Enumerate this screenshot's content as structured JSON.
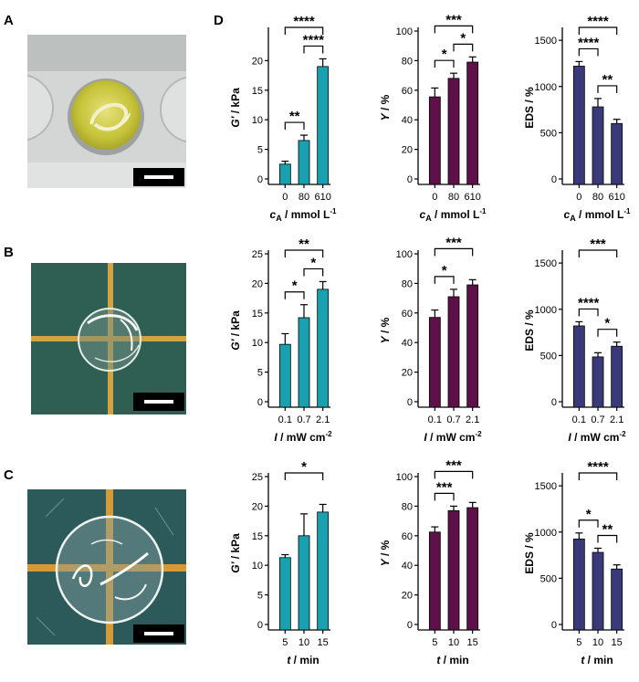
{
  "panel_labels": {
    "a": "A",
    "b": "B",
    "c": "C",
    "d": "D"
  },
  "photos": {
    "a": {
      "description_icon": "hydrogel-photo-yellow",
      "colors": {
        "bg": "#c9cccb",
        "gel": "#c8c83a"
      }
    },
    "b": {
      "description_icon": "hydrogel-photo-grid",
      "colors": {
        "bg": "#2e5e52",
        "grid": "#d2a23e"
      }
    },
    "c": {
      "description_icon": "hydrogel-photo-grid",
      "colors": {
        "bg": "#2b5a5a",
        "grid": "#d69a35"
      }
    }
  },
  "colors": {
    "gprime": "#1aa1b0",
    "y": "#5e1048",
    "eds": "#3a3a7a"
  },
  "chart_data": [
    {
      "type": "bar",
      "id": "r1c1",
      "ylabel": "G' / kPa",
      "xlabel": "cA / mmol L-1",
      "xlabel_main": "c",
      "xlabel_sub": "A",
      "xlabel_unit": " / mmol L",
      "xlabel_sup": "-1",
      "categories": [
        "0",
        "80",
        "610"
      ],
      "values": [
        2.5,
        6.5,
        19
      ],
      "errors": [
        0.5,
        0.9,
        1.3
      ],
      "ylim": [
        0,
        25
      ],
      "yticks": [
        0,
        5,
        10,
        15,
        20
      ],
      "ytick_labels": [
        "0",
        "5",
        "10",
        "15",
        "20"
      ],
      "color_key": "gprime",
      "sig": [
        {
          "from": 0,
          "to": 1,
          "label": "**"
        },
        {
          "from": 1,
          "to": 2,
          "label": "****"
        },
        {
          "from": 0,
          "to": 2,
          "label": "****"
        }
      ]
    },
    {
      "type": "bar",
      "id": "r1c2",
      "ylabel": "Y / %",
      "xlabel": "cA / mmol L-1",
      "xlabel_main": "c",
      "xlabel_sub": "A",
      "xlabel_unit": " / mmol L",
      "xlabel_sup": "-1",
      "categories": [
        "0",
        "80",
        "610"
      ],
      "values": [
        55.5,
        68,
        79
      ],
      "errors": [
        6,
        3.5,
        3.5
      ],
      "ylim": [
        0,
        100
      ],
      "yticks": [
        0,
        20,
        40,
        60,
        80,
        100
      ],
      "ytick_labels": [
        "0",
        "20",
        "40",
        "60",
        "80",
        "100"
      ],
      "color_key": "y",
      "sig": [
        {
          "from": 0,
          "to": 1,
          "label": "*"
        },
        {
          "from": 1,
          "to": 2,
          "label": "*"
        },
        {
          "from": 0,
          "to": 2,
          "label": "***"
        }
      ]
    },
    {
      "type": "bar",
      "id": "r1c3",
      "ylabel": "EDS / %",
      "xlabel": "cA / mmol L-1",
      "xlabel_main": "c",
      "xlabel_sub": "A",
      "xlabel_unit": " / mmol L",
      "xlabel_sup": "-1",
      "categories": [
        "0",
        "80",
        "610"
      ],
      "values": [
        1220,
        780,
        600
      ],
      "errors": [
        50,
        90,
        45
      ],
      "ylim": [
        0,
        1600
      ],
      "yticks": [
        0,
        500,
        1000,
        1500
      ],
      "ytick_labels": [
        "0",
        "500",
        "1000",
        "1500"
      ],
      "color_key": "eds",
      "sig": [
        {
          "from": 0,
          "to": 1,
          "label": "****"
        },
        {
          "from": 1,
          "to": 2,
          "label": "**"
        },
        {
          "from": 0,
          "to": 2,
          "label": "****"
        }
      ]
    },
    {
      "type": "bar",
      "id": "r2c1",
      "ylabel": "G' / kPa",
      "xlabel": "I / mW cm-2",
      "xlabel_main": "I",
      "xlabel_sub": "",
      "xlabel_unit": " / mW cm",
      "xlabel_sup": "-2",
      "categories": [
        "0.1",
        "0.7",
        "2.1"
      ],
      "values": [
        9.7,
        14.2,
        19
      ],
      "errors": [
        1.8,
        2.2,
        1.3
      ],
      "ylim": [
        0,
        25
      ],
      "yticks": [
        0,
        5,
        10,
        15,
        20,
        25
      ],
      "ytick_labels": [
        "0",
        "5",
        "10",
        "15",
        "20",
        "25"
      ],
      "color_key": "gprime",
      "sig": [
        {
          "from": 0,
          "to": 1,
          "label": "*"
        },
        {
          "from": 1,
          "to": 2,
          "label": "*"
        },
        {
          "from": 0,
          "to": 2,
          "label": "**"
        }
      ]
    },
    {
      "type": "bar",
      "id": "r2c2",
      "ylabel": "Y / %",
      "xlabel": "I / mW cm-2",
      "xlabel_main": "I",
      "xlabel_sub": "",
      "xlabel_unit": " / mW cm",
      "xlabel_sup": "-2",
      "categories": [
        "0.1",
        "0.7",
        "2.1"
      ],
      "values": [
        57,
        71,
        79
      ],
      "errors": [
        5,
        5,
        3.5
      ],
      "ylim": [
        0,
        100
      ],
      "yticks": [
        0,
        20,
        40,
        60,
        80,
        100
      ],
      "ytick_labels": [
        "0",
        "20",
        "40",
        "60",
        "80",
        "100"
      ],
      "color_key": "y",
      "sig": [
        {
          "from": 0,
          "to": 1,
          "label": "*"
        },
        {
          "from": 0,
          "to": 2,
          "label": "***"
        }
      ]
    },
    {
      "type": "bar",
      "id": "r2c3",
      "ylabel": "EDS / %",
      "xlabel": "I / mW cm-2",
      "xlabel_main": "I",
      "xlabel_sub": "",
      "xlabel_unit": " / mW cm",
      "xlabel_sup": "-2",
      "categories": [
        "0.1",
        "0.7",
        "2.1"
      ],
      "values": [
        820,
        485,
        600
      ],
      "errors": [
        45,
        45,
        45
      ],
      "ylim": [
        0,
        1600
      ],
      "yticks": [
        0,
        500,
        1000,
        1500
      ],
      "ytick_labels": [
        "0",
        "500",
        "1000",
        "1500"
      ],
      "color_key": "eds",
      "sig": [
        {
          "from": 0,
          "to": 1,
          "label": "****"
        },
        {
          "from": 1,
          "to": 2,
          "label": "*"
        },
        {
          "from": 0,
          "to": 2,
          "label": "***"
        }
      ]
    },
    {
      "type": "bar",
      "id": "r3c1",
      "ylabel": "G' / kPa",
      "xlabel": "t / min",
      "xlabel_main": "t",
      "xlabel_sub": "",
      "xlabel_unit": " / min",
      "xlabel_sup": "",
      "categories": [
        "5",
        "10",
        "15"
      ],
      "values": [
        11.3,
        15,
        19
      ],
      "errors": [
        0.5,
        3.7,
        1.3
      ],
      "ylim": [
        0,
        25
      ],
      "yticks": [
        0,
        5,
        10,
        15,
        20,
        25
      ],
      "ytick_labels": [
        "0",
        "5",
        "10",
        "15",
        "20",
        "25"
      ],
      "color_key": "gprime",
      "sig": [
        {
          "from": 0,
          "to": 2,
          "label": "*"
        }
      ]
    },
    {
      "type": "bar",
      "id": "r3c2",
      "ylabel": "Y / %",
      "xlabel": "t / min",
      "xlabel_main": "t",
      "xlabel_sub": "",
      "xlabel_unit": " / min",
      "xlabel_sup": "",
      "categories": [
        "5",
        "10",
        "15"
      ],
      "values": [
        62.5,
        77,
        79
      ],
      "errors": [
        3.5,
        3,
        3.5
      ],
      "ylim": [
        0,
        100
      ],
      "yticks": [
        0,
        20,
        40,
        60,
        80,
        100
      ],
      "ytick_labels": [
        "0",
        "20",
        "40",
        "60",
        "80",
        "100"
      ],
      "color_key": "y",
      "sig": [
        {
          "from": 0,
          "to": 1,
          "label": "***"
        },
        {
          "from": 0,
          "to": 2,
          "label": "***"
        }
      ]
    },
    {
      "type": "bar",
      "id": "r3c3",
      "ylabel": "EDS / %",
      "xlabel": "t / min",
      "xlabel_main": "t",
      "xlabel_sub": "",
      "xlabel_unit": " / min",
      "xlabel_sup": "",
      "categories": [
        "5",
        "10",
        "15"
      ],
      "values": [
        925,
        780,
        600
      ],
      "errors": [
        65,
        45,
        45
      ],
      "ylim": [
        0,
        1600
      ],
      "yticks": [
        0,
        500,
        1000,
        1500
      ],
      "ytick_labels": [
        "0",
        "500",
        "1000",
        "1500"
      ],
      "color_key": "eds",
      "sig": [
        {
          "from": 0,
          "to": 1,
          "label": "*"
        },
        {
          "from": 1,
          "to": 2,
          "label": "**"
        },
        {
          "from": 0,
          "to": 2,
          "label": "****"
        }
      ]
    }
  ]
}
